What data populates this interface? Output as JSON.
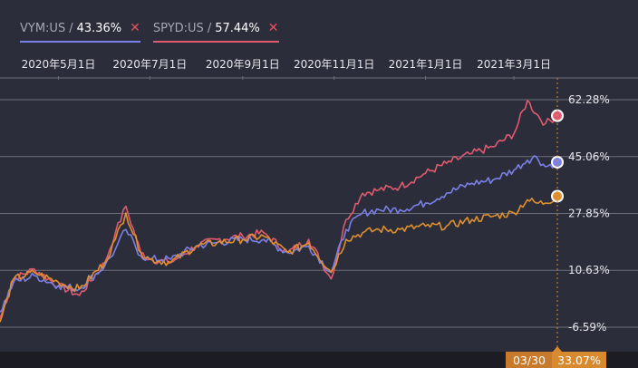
{
  "legend": [
    {
      "code": "VYM:US",
      "sep": "/",
      "pct": "43.36%",
      "close": "✕",
      "color": "#7b7fe8",
      "close_color": "#e0535f"
    },
    {
      "code": "SPYD:US",
      "sep": "/",
      "pct": "57.44%",
      "close": "✕",
      "color": "#e05a70",
      "close_color": "#e0535f"
    }
  ],
  "cursor": {
    "date": "03/30",
    "value": "33.07%",
    "color": "#d98a2f"
  },
  "chart_data": {
    "type": "line",
    "x_tick_labels": [
      "2020年5月1日",
      "2020年7月1日",
      "2020年9月1日",
      "2020年11月1日",
      "2021年1月1日",
      "2021年3月1日"
    ],
    "x_ticks": [
      "2020-05-01",
      "2020-07-01",
      "2020-09-01",
      "2020-11-01",
      "2021-01-01",
      "2021-03-01"
    ],
    "x_range": [
      "2020-03-23",
      "2021-03-30"
    ],
    "y_tick_labels": [
      "62.28%",
      "45.06%",
      "27.85%",
      "10.63%",
      "-6.59%"
    ],
    "y_ticks": [
      62.28,
      45.06,
      27.85,
      10.63,
      -6.59
    ],
    "ylim": [
      -6.59,
      62.28
    ],
    "series": [
      {
        "name": "SPYD:US",
        "color": "#e05a70",
        "dates": [
          "2020-03-23",
          "2020-04-01",
          "2020-04-15",
          "2020-05-01",
          "2020-05-15",
          "2020-06-01",
          "2020-06-08",
          "2020-06-15",
          "2020-06-25",
          "2020-07-01",
          "2020-07-15",
          "2020-08-01",
          "2020-08-15",
          "2020-09-01",
          "2020-09-15",
          "2020-10-01",
          "2020-10-15",
          "2020-10-30",
          "2020-11-09",
          "2020-11-20",
          "2020-12-01",
          "2020-12-15",
          "2021-01-01",
          "2021-01-15",
          "2021-02-01",
          "2021-02-15",
          "2021-03-01",
          "2021-03-10",
          "2021-03-16",
          "2021-03-22",
          "2021-03-30"
        ],
        "values": [
          -4,
          8,
          11,
          6,
          3,
          13,
          22,
          30,
          16,
          14,
          13,
          18,
          20,
          21,
          22,
          16,
          20,
          8,
          26,
          34,
          35,
          36,
          40,
          43,
          46,
          48,
          52,
          62,
          58,
          55,
          57.44
        ]
      },
      {
        "name": "VYM:US",
        "color": "#7b7fe8",
        "dates": [
          "2020-03-23",
          "2020-04-01",
          "2020-04-15",
          "2020-05-01",
          "2020-05-15",
          "2020-06-01",
          "2020-06-08",
          "2020-06-15",
          "2020-06-25",
          "2020-07-01",
          "2020-07-15",
          "2020-08-01",
          "2020-08-15",
          "2020-09-01",
          "2020-09-15",
          "2020-10-01",
          "2020-10-15",
          "2020-10-30",
          "2020-11-09",
          "2020-11-20",
          "2020-12-01",
          "2020-12-15",
          "2021-01-01",
          "2021-01-15",
          "2021-02-01",
          "2021-02-15",
          "2021-03-01",
          "2021-03-10",
          "2021-03-16",
          "2021-03-22",
          "2021-03-30"
        ],
        "values": [
          -2,
          7,
          9,
          6,
          5,
          12,
          17,
          23,
          15,
          14,
          14,
          18,
          19,
          20,
          20,
          16,
          18,
          10,
          23,
          28,
          29,
          29,
          31,
          34,
          37,
          38,
          41,
          44,
          45,
          42,
          43.36
        ]
      },
      {
        "name": "",
        "color": "#e08f2e",
        "dates": [
          "2020-03-23",
          "2020-04-01",
          "2020-04-15",
          "2020-05-01",
          "2020-05-15",
          "2020-06-01",
          "2020-06-08",
          "2020-06-15",
          "2020-06-25",
          "2020-07-01",
          "2020-07-15",
          "2020-08-01",
          "2020-08-15",
          "2020-09-01",
          "2020-09-15",
          "2020-10-01",
          "2020-10-15",
          "2020-10-30",
          "2020-11-09",
          "2020-11-20",
          "2020-12-01",
          "2020-12-15",
          "2021-01-01",
          "2021-01-15",
          "2021-02-01",
          "2021-02-15",
          "2021-03-01",
          "2021-03-10",
          "2021-03-16",
          "2021-03-22",
          "2021-03-30"
        ],
        "values": [
          -5,
          8,
          10,
          7,
          5,
          13,
          20,
          28,
          16,
          14,
          13,
          18,
          19,
          20,
          21,
          16,
          19,
          10,
          20,
          22,
          23,
          23,
          24,
          24,
          26,
          27,
          28,
          32,
          31,
          31,
          33.07
        ]
      }
    ],
    "grid": true
  }
}
